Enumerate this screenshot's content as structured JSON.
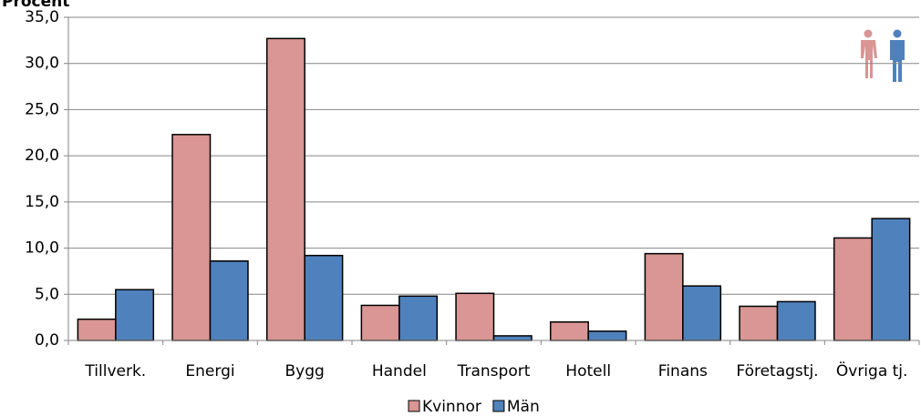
{
  "chart_data": {
    "type": "bar",
    "y_label": "Procent",
    "categories": [
      "Tillverk.",
      "Energi",
      "Bygg",
      "Handel",
      "Transport",
      "Hotell",
      "Finans",
      "Företagstj.",
      "Övriga tj."
    ],
    "series": [
      {
        "name": "Kvinnor",
        "color": "#d99694",
        "values": [
          2.3,
          22.3,
          32.7,
          3.8,
          5.1,
          2.0,
          9.4,
          3.7,
          11.1
        ]
      },
      {
        "name": "Män",
        "color": "#4f81bd",
        "values": [
          5.5,
          8.6,
          9.2,
          4.8,
          0.5,
          1.0,
          5.9,
          4.2,
          13.2
        ]
      }
    ],
    "ylim": [
      0,
      35
    ],
    "yticks": [
      {
        "value": 0,
        "label": "0,0"
      },
      {
        "value": 5,
        "label": "5,0"
      },
      {
        "value": 10,
        "label": "10,0"
      },
      {
        "value": 15,
        "label": "15,0"
      },
      {
        "value": 20,
        "label": "20,0"
      },
      {
        "value": 25,
        "label": "25,0"
      },
      {
        "value": 30,
        "label": "30,0"
      },
      {
        "value": 35,
        "label": "35,0"
      }
    ],
    "grid": true,
    "legend": "bottom"
  }
}
